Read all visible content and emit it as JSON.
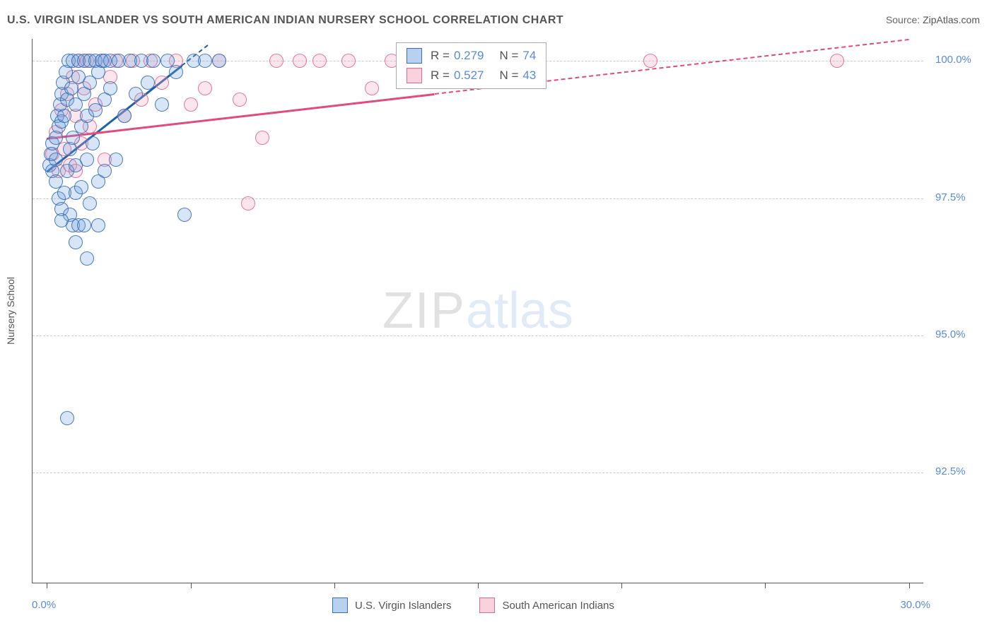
{
  "title": "U.S. VIRGIN ISLANDER VS SOUTH AMERICAN INDIAN NURSERY SCHOOL CORRELATION CHART",
  "source": {
    "label": "Source: ",
    "value": "ZipAtlas.com"
  },
  "watermark": {
    "part1": "ZIP",
    "part2": "atlas"
  },
  "chart": {
    "type": "scatter",
    "ylabel": "Nursery School",
    "background": "#ffffff",
    "grid_color": "#cccccc",
    "axis_color": "#555555",
    "label_color": "#555555",
    "tick_value_color": "#5b8bd4",
    "title_fontsize": 16,
    "label_fontsize": 14,
    "tick_fontsize": 15,
    "marker_radius": 9,
    "marker_fill_opacity": 0.28,
    "marker_stroke_opacity": 0.9,
    "trend_line_width": 2.5,
    "xlim": [
      -0.5,
      30.5
    ],
    "ylim": [
      90.5,
      100.4
    ],
    "yticks": [
      {
        "v": 92.5,
        "label": "92.5%"
      },
      {
        "v": 95.0,
        "label": "95.0%"
      },
      {
        "v": 97.5,
        "label": "97.5%"
      },
      {
        "v": 100.0,
        "label": "100.0%"
      }
    ],
    "xticks": [
      {
        "v": 0.0,
        "label": "0.0%"
      },
      {
        "v": 5.0,
        "label": ""
      },
      {
        "v": 10.0,
        "label": ""
      },
      {
        "v": 15.0,
        "label": ""
      },
      {
        "v": 20.0,
        "label": ""
      },
      {
        "v": 25.0,
        "label": ""
      },
      {
        "v": 30.0,
        "label": "30.0%"
      }
    ],
    "series": [
      {
        "name": "U.S. Virgin Islanders",
        "marker_fill": "#6fa3e0",
        "marker_stroke": "#3a6fb5",
        "trend_color": "#1f5fa8",
        "R": "0.279",
        "N": "74",
        "trend": {
          "x1": 0.0,
          "y1": 98.0,
          "x2": 5.6,
          "y2": 100.3,
          "dashed_after_x": 4.7
        },
        "points": [
          [
            0.1,
            98.1
          ],
          [
            0.15,
            98.3
          ],
          [
            0.2,
            98.0
          ],
          [
            0.2,
            98.5
          ],
          [
            0.3,
            97.8
          ],
          [
            0.3,
            98.2
          ],
          [
            0.3,
            98.6
          ],
          [
            0.35,
            99.0
          ],
          [
            0.4,
            97.5
          ],
          [
            0.4,
            98.8
          ],
          [
            0.45,
            99.2
          ],
          [
            0.5,
            97.3
          ],
          [
            0.5,
            98.9
          ],
          [
            0.5,
            99.4
          ],
          [
            0.55,
            99.6
          ],
          [
            0.6,
            97.6
          ],
          [
            0.6,
            99.0
          ],
          [
            0.65,
            99.8
          ],
          [
            0.7,
            98.0
          ],
          [
            0.7,
            99.3
          ],
          [
            0.75,
            100.0
          ],
          [
            0.8,
            97.2
          ],
          [
            0.8,
            98.4
          ],
          [
            0.85,
            99.5
          ],
          [
            0.9,
            98.6
          ],
          [
            0.9,
            100.0
          ],
          [
            1.0,
            97.6
          ],
          [
            1.0,
            98.1
          ],
          [
            1.0,
            99.2
          ],
          [
            1.1,
            99.7
          ],
          [
            1.1,
            100.0
          ],
          [
            1.2,
            97.7
          ],
          [
            1.2,
            98.8
          ],
          [
            1.3,
            99.4
          ],
          [
            1.3,
            100.0
          ],
          [
            1.4,
            98.2
          ],
          [
            1.4,
            99.0
          ],
          [
            1.5,
            97.4
          ],
          [
            1.5,
            99.6
          ],
          [
            1.5,
            100.0
          ],
          [
            1.6,
            98.5
          ],
          [
            1.7,
            99.1
          ],
          [
            1.7,
            100.0
          ],
          [
            1.8,
            97.8
          ],
          [
            1.8,
            99.8
          ],
          [
            1.9,
            100.0
          ],
          [
            2.0,
            98.0
          ],
          [
            2.0,
            99.3
          ],
          [
            2.0,
            100.0
          ],
          [
            2.2,
            99.5
          ],
          [
            2.2,
            100.0
          ],
          [
            2.4,
            98.2
          ],
          [
            2.5,
            100.0
          ],
          [
            2.7,
            99.0
          ],
          [
            2.9,
            100.0
          ],
          [
            3.1,
            99.4
          ],
          [
            3.3,
            100.0
          ],
          [
            3.5,
            99.6
          ],
          [
            3.7,
            100.0
          ],
          [
            4.0,
            99.2
          ],
          [
            4.2,
            100.0
          ],
          [
            4.5,
            99.8
          ],
          [
            4.8,
            97.2
          ],
          [
            5.1,
            100.0
          ],
          [
            5.5,
            100.0
          ],
          [
            6.0,
            100.0
          ],
          [
            0.7,
            93.5
          ],
          [
            1.0,
            96.7
          ],
          [
            1.4,
            96.4
          ],
          [
            1.8,
            97.0
          ],
          [
            0.9,
            97.0
          ],
          [
            0.5,
            97.1
          ],
          [
            1.1,
            97.0
          ],
          [
            1.3,
            97.0
          ]
        ]
      },
      {
        "name": "South American Indians",
        "marker_fill": "#f4a6bd",
        "marker_stroke": "#e06a8f",
        "trend_color": "#e24b7a",
        "R": "0.527",
        "N": "43",
        "trend": {
          "x1": 0.0,
          "y1": 98.6,
          "x2": 30.0,
          "y2": 100.4,
          "dashed_after_x": 13.5
        },
        "points": [
          [
            0.2,
            98.3
          ],
          [
            0.3,
            98.7
          ],
          [
            0.4,
            98.0
          ],
          [
            0.5,
            99.1
          ],
          [
            0.6,
            98.4
          ],
          [
            0.7,
            99.4
          ],
          [
            0.8,
            98.1
          ],
          [
            0.9,
            99.7
          ],
          [
            1.0,
            98.0
          ],
          [
            1.0,
            99.0
          ],
          [
            1.1,
            100.0
          ],
          [
            1.2,
            98.5
          ],
          [
            1.3,
            99.5
          ],
          [
            1.4,
            100.0
          ],
          [
            1.5,
            98.8
          ],
          [
            1.7,
            99.2
          ],
          [
            1.9,
            100.0
          ],
          [
            2.0,
            98.2
          ],
          [
            2.2,
            99.7
          ],
          [
            2.4,
            100.0
          ],
          [
            2.7,
            99.0
          ],
          [
            3.0,
            100.0
          ],
          [
            3.3,
            99.3
          ],
          [
            3.6,
            100.0
          ],
          [
            4.0,
            99.6
          ],
          [
            4.5,
            100.0
          ],
          [
            5.0,
            99.2
          ],
          [
            5.5,
            99.5
          ],
          [
            6.0,
            100.0
          ],
          [
            6.7,
            99.3
          ],
          [
            7.0,
            97.4
          ],
          [
            7.5,
            98.6
          ],
          [
            8.0,
            100.0
          ],
          [
            8.8,
            100.0
          ],
          [
            9.5,
            100.0
          ],
          [
            10.5,
            100.0
          ],
          [
            11.3,
            99.5
          ],
          [
            12.0,
            100.0
          ],
          [
            12.8,
            100.0
          ],
          [
            13.5,
            100.0
          ],
          [
            14.3,
            100.0
          ],
          [
            21.0,
            100.0
          ],
          [
            27.5,
            100.0
          ]
        ]
      }
    ]
  }
}
